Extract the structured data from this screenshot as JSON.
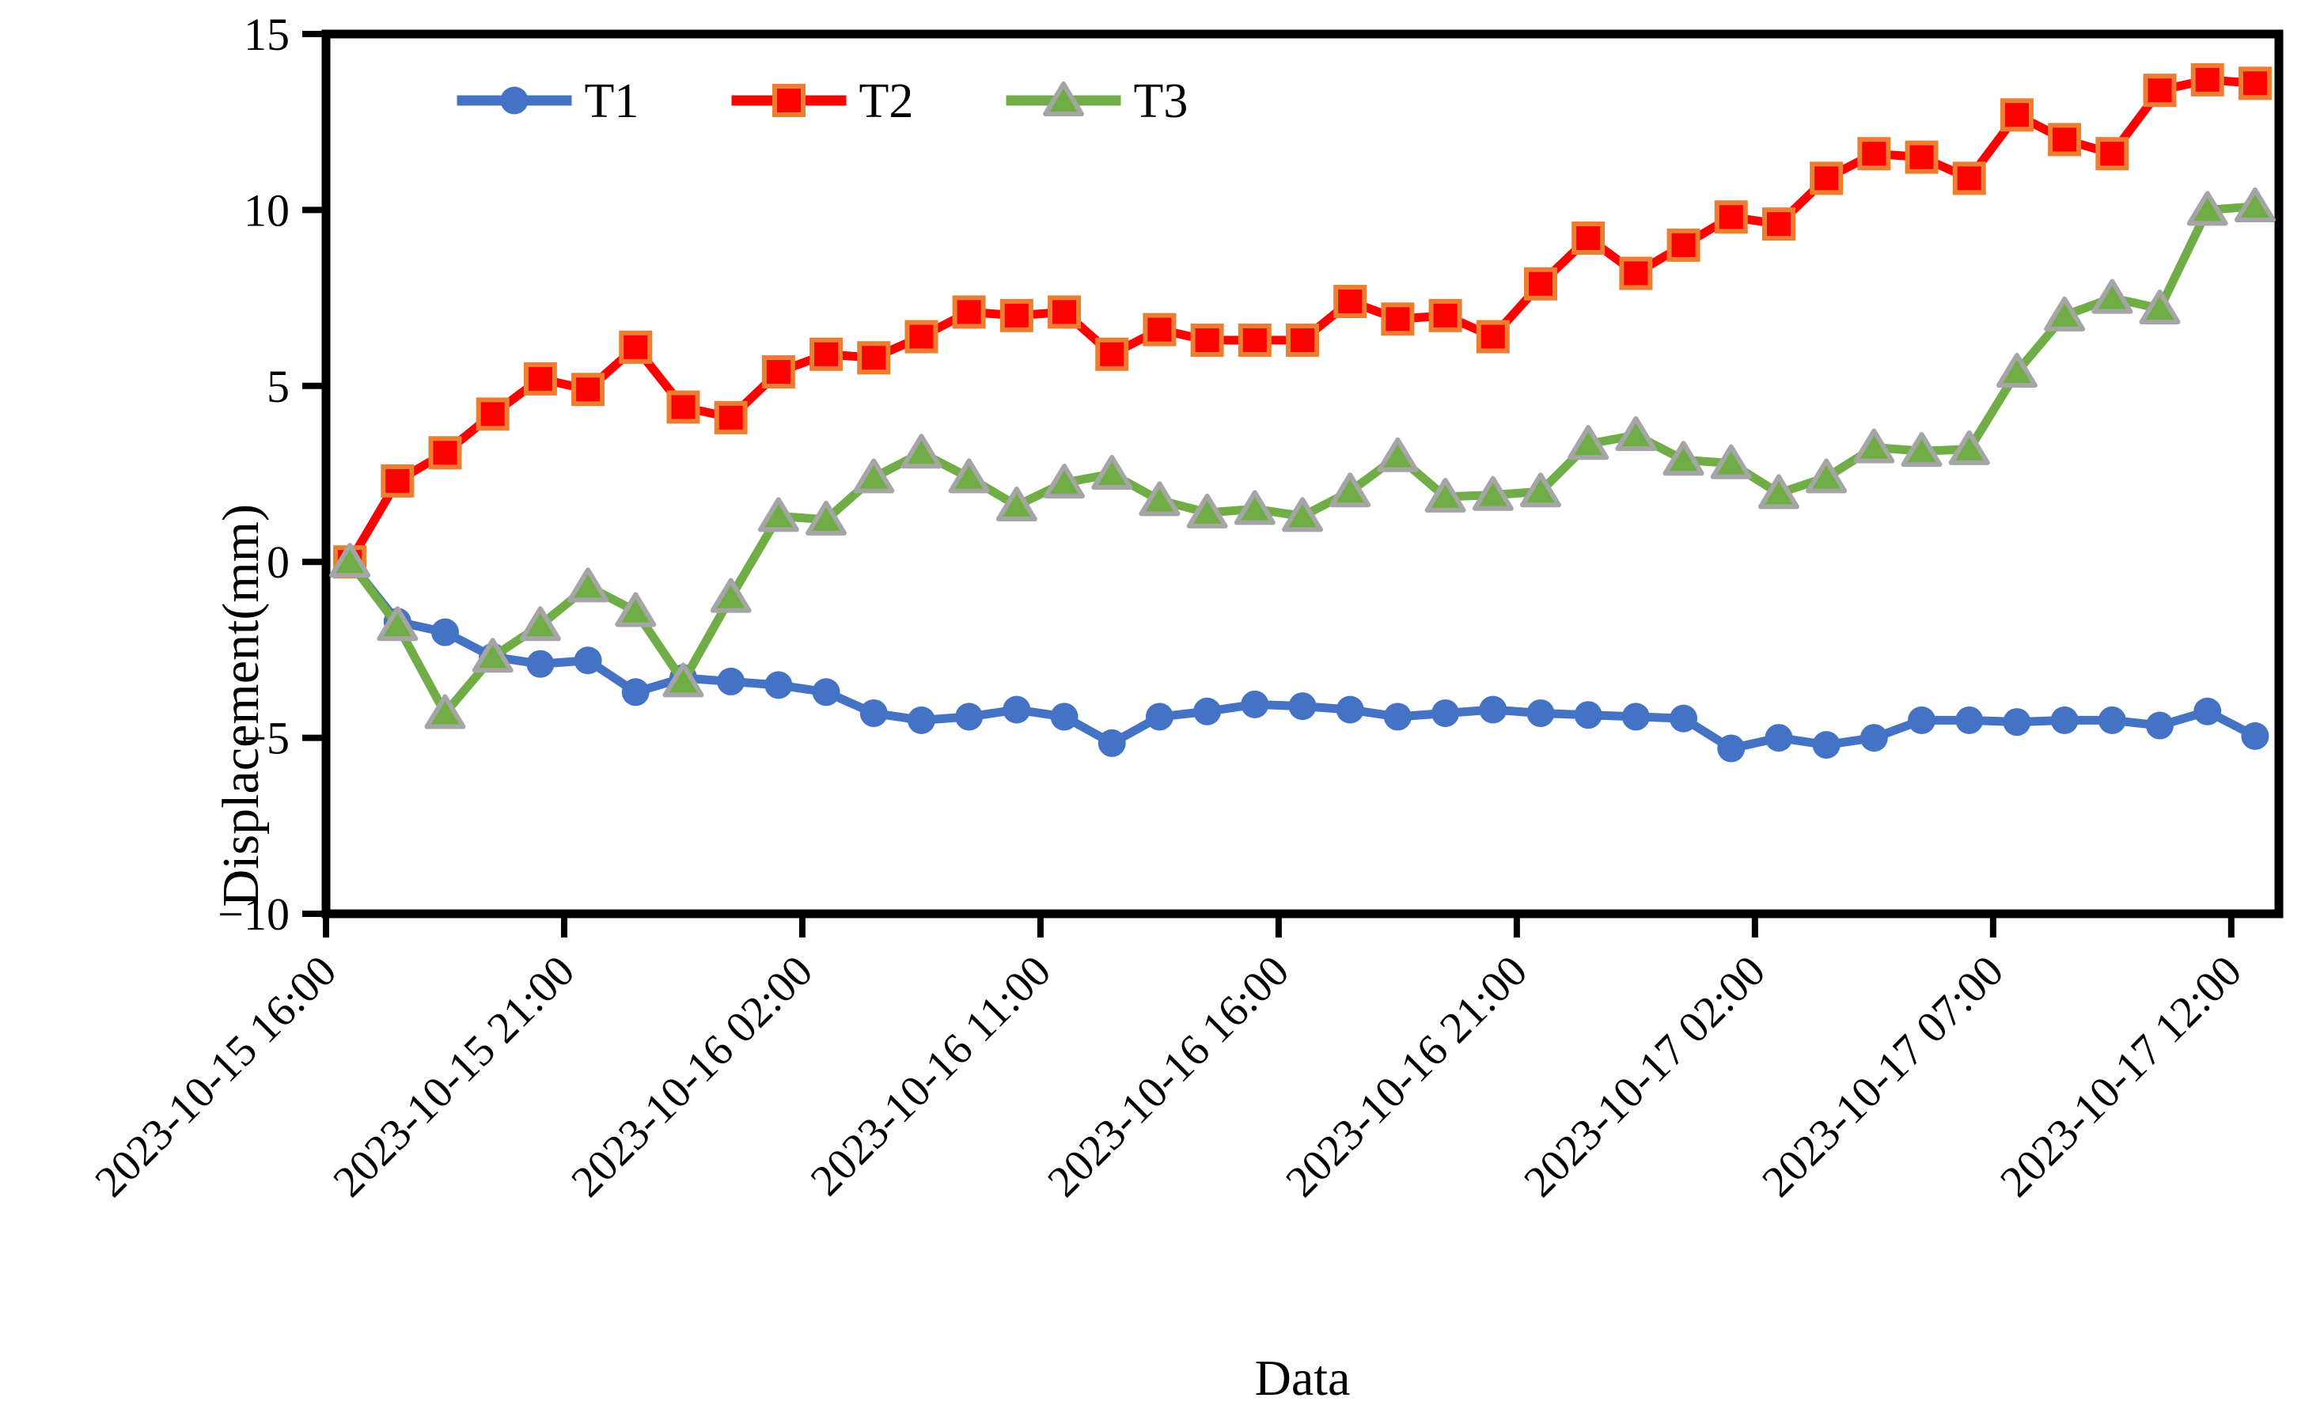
{
  "page": {
    "background": "#ffffff"
  },
  "chart_data": {
    "type": "line",
    "title": "",
    "xlabel": "Data",
    "ylabel": "Displacement(mm)",
    "ylim": [
      -10,
      15
    ],
    "yticks": [
      15,
      10,
      5,
      0,
      -5,
      -10
    ],
    "ytick_labels": [
      "15",
      "10",
      "5",
      "0",
      "−5",
      "−10"
    ],
    "n_points": 41,
    "x_tick_indices": [
      0,
      5,
      10,
      15,
      20,
      25,
      30,
      35,
      40
    ],
    "x_tick_labels": [
      "2023-10-15 16:00",
      "2023-10-15 21:00",
      "2023-10-16 02:00",
      "2023-10-16 11:00",
      "2023-10-16 16:00",
      "2023-10-16 21:00",
      "2023-10-17 02:00",
      "2023-10-17 07:00",
      "2023-10-17 12:00"
    ],
    "grid": false,
    "legend_position": "top-left-inside",
    "frame": "closed-box",
    "axis_color": "#000000",
    "series": [
      {
        "name": "T1",
        "color": "#4472C4",
        "marker": "circle",
        "marker_fill": "#4472C4",
        "marker_border": "#4472C4",
        "values": [
          0,
          -1.7,
          -2.0,
          -2.7,
          -2.9,
          -2.8,
          -3.7,
          -3.3,
          -3.4,
          -3.5,
          -3.7,
          -4.3,
          -4.5,
          -4.4,
          -4.2,
          -4.4,
          -5.15,
          -4.4,
          -4.25,
          -4.05,
          -4.1,
          -4.2,
          -4.4,
          -4.3,
          -4.2,
          -4.3,
          -4.35,
          -4.4,
          -4.45,
          -5.3,
          -5.0,
          -5.2,
          -5.0,
          -4.5,
          -4.5,
          -4.55,
          -4.5,
          -4.5,
          -4.65,
          -4.25,
          -4.95
        ]
      },
      {
        "name": "T2",
        "color": "#FF0000",
        "marker": "square",
        "marker_fill": "#FF0000",
        "marker_border": "#ED7D31",
        "values": [
          0,
          2.3,
          3.1,
          4.2,
          5.2,
          4.9,
          6.1,
          4.4,
          4.1,
          5.4,
          5.9,
          5.8,
          6.4,
          7.1,
          7.0,
          7.1,
          5.9,
          6.6,
          6.3,
          6.3,
          6.3,
          7.4,
          6.9,
          7.0,
          6.4,
          7.9,
          9.2,
          8.2,
          9.0,
          9.8,
          9.6,
          10.9,
          11.6,
          11.5,
          10.9,
          12.7,
          12.0,
          11.6,
          13.4,
          13.7,
          13.6
        ]
      },
      {
        "name": "T3",
        "color": "#70AD47",
        "marker": "triangle",
        "marker_fill": "#70AD47",
        "marker_border": "#A5A5A5",
        "values": [
          0,
          -1.8,
          -4.3,
          -2.7,
          -1.8,
          -0.7,
          -1.4,
          -3.4,
          -1.0,
          1.3,
          1.2,
          2.4,
          3.1,
          2.4,
          1.6,
          2.25,
          2.5,
          1.75,
          1.4,
          1.5,
          1.3,
          2.0,
          3.0,
          1.85,
          1.9,
          2.0,
          3.35,
          3.6,
          2.9,
          2.8,
          1.95,
          2.4,
          3.25,
          3.15,
          3.2,
          5.4,
          7.0,
          7.5,
          7.2,
          10.0,
          10.1
        ]
      }
    ]
  }
}
